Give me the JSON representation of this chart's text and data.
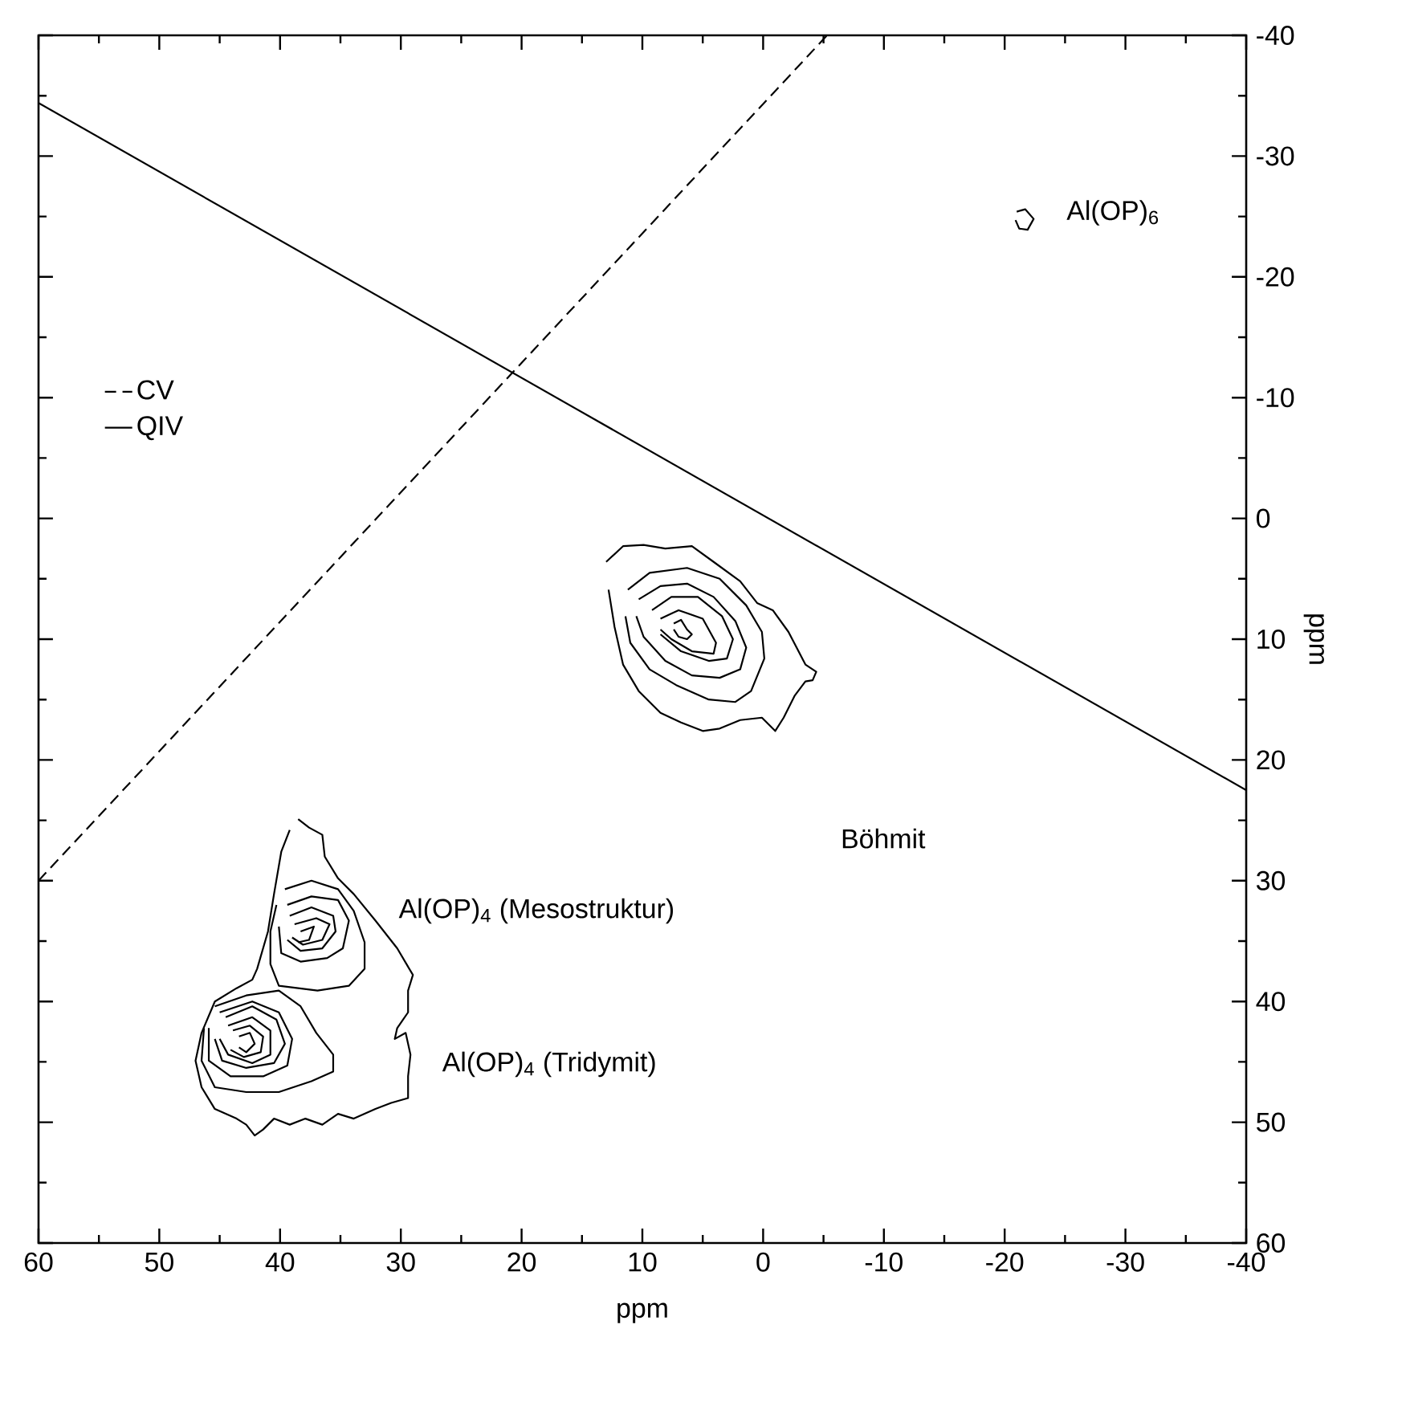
{
  "chart_data": {
    "type": "line",
    "xlabel": "ppm",
    "ylabel": "ppm",
    "xlim": [
      60,
      -40
    ],
    "ylim": [
      60,
      -40
    ],
    "xticks": [
      60,
      50,
      40,
      30,
      20,
      10,
      0,
      -10,
      -20,
      -30,
      -40
    ],
    "yticks": [
      -40,
      -30,
      -20,
      -10,
      0,
      10,
      20,
      30,
      40,
      50,
      60
    ],
    "legend": "left",
    "series": [
      {
        "name": "CV",
        "color": "#000000",
        "line_style": "dashed",
        "x": [
          60,
          -5.3
        ],
        "values": [
          30,
          -40
        ]
      },
      {
        "name": "QIV",
        "color": "#000000",
        "line_style": "solid",
        "x": [
          60,
          -40
        ],
        "values": [
          -34.4,
          22.5
        ]
      },
      {
        "color": "#000000",
        "x": [
          13.0,
          11.6,
          9.9,
          8.1,
          5.9,
          4.1,
          1.9,
          0.5,
          -0.8,
          -2.1,
          -3.5,
          -4.4,
          -4.1,
          -3.5,
          -2.6,
          -1.7,
          -1.0,
          0.1,
          1.9,
          3.6,
          5.0,
          6.8,
          8.5,
          10.3,
          11.6,
          12.3,
          12.8
        ],
        "values": [
          3.6,
          2.3,
          2.2,
          2.5,
          2.3,
          3.6,
          5.2,
          7.0,
          7.6,
          9.4,
          12.1,
          12.7,
          13.4,
          13.5,
          14.7,
          16.5,
          17.6,
          16.5,
          16.7,
          17.4,
          17.6,
          16.9,
          16.1,
          14.3,
          12.1,
          9.0,
          5.9
        ]
      },
      {
        "color": "#000000",
        "x": [
          11.2,
          9.4,
          6.3,
          3.6,
          1.4,
          0.1,
          -0.1,
          1.0,
          2.3,
          4.5,
          7.2,
          9.4,
          11.0,
          11.4
        ],
        "values": [
          5.9,
          4.5,
          4.1,
          5.0,
          7.2,
          9.4,
          11.6,
          14.3,
          15.2,
          15.0,
          13.8,
          12.5,
          10.3,
          8.1
        ]
      },
      {
        "color": "#000000",
        "x": [
          10.3,
          8.5,
          6.3,
          4.1,
          2.3,
          1.4,
          1.9,
          3.6,
          5.9,
          8.1,
          9.9,
          10.5
        ],
        "values": [
          6.7,
          5.6,
          5.4,
          6.5,
          8.5,
          10.7,
          12.5,
          13.2,
          13.0,
          11.8,
          9.8,
          8.1
        ]
      },
      {
        "color": "#000000",
        "x": [
          9.2,
          7.6,
          5.4,
          3.4,
          2.5,
          3.0,
          4.5,
          6.8,
          8.5
        ],
        "values": [
          7.6,
          6.5,
          6.5,
          8.1,
          10.0,
          11.6,
          11.8,
          11.0,
          9.6
        ]
      },
      {
        "color": "#000000",
        "x": [
          8.5,
          7.0,
          5.0,
          3.9,
          4.1,
          5.9,
          7.6,
          8.5
        ],
        "values": [
          8.3,
          7.6,
          8.3,
          10.3,
          11.2,
          11.0,
          10.0,
          9.2
        ]
      },
      {
        "color": "#000000",
        "x": [
          7.4,
          6.8,
          6.3,
          5.9,
          6.3,
          7.0,
          7.4
        ],
        "values": [
          8.7,
          8.4,
          9.2,
          9.6,
          10.0,
          9.8,
          9.2
        ]
      },
      {
        "color": "#000000",
        "x": [
          38.5,
          37.6,
          36.5,
          36.3,
          35.2,
          33.9,
          32.1,
          30.3,
          29.0,
          29.4,
          29.4,
          30.3,
          30.5,
          29.6,
          29.2,
          29.4,
          29.4,
          30.8,
          32.1,
          33.9,
          35.2,
          36.5,
          37.9,
          39.2,
          40.5,
          41.4,
          42.1,
          42.8,
          43.6,
          45.4,
          46.5,
          47.0,
          46.5,
          45.4,
          43.6,
          42.3,
          41.9,
          41.0,
          40.5,
          39.9,
          39.2
        ],
        "values": [
          24.9,
          25.6,
          26.2,
          28.0,
          29.8,
          31.1,
          33.3,
          35.6,
          37.8,
          39.1,
          40.9,
          42.2,
          43.1,
          42.6,
          44.4,
          46.2,
          48.0,
          48.4,
          48.9,
          49.7,
          49.3,
          50.2,
          49.7,
          50.2,
          49.7,
          50.6,
          51.1,
          50.2,
          49.7,
          48.9,
          47.1,
          44.9,
          42.6,
          40.0,
          38.9,
          38.2,
          37.3,
          34.2,
          31.1,
          27.6,
          25.8
        ]
      },
      {
        "color": "#000000",
        "x": [
          39.6,
          37.4,
          35.2,
          33.9,
          33.0,
          33.0,
          34.3,
          36.9,
          40.1,
          40.8,
          40.8,
          40.3
        ],
        "values": [
          30.7,
          30.0,
          30.7,
          32.5,
          35.1,
          37.3,
          38.7,
          39.1,
          38.7,
          36.9,
          34.2,
          32.0
        ]
      },
      {
        "color": "#000000",
        "x": [
          39.4,
          37.4,
          35.2,
          34.3,
          34.8,
          36.1,
          38.3,
          39.9,
          40.1
        ],
        "values": [
          32.0,
          31.3,
          31.6,
          33.3,
          35.6,
          36.4,
          36.7,
          36.0,
          33.8
        ]
      },
      {
        "color": "#000000",
        "x": [
          39.2,
          37.4,
          35.6,
          35.4,
          36.5,
          38.3,
          39.4
        ],
        "values": [
          32.9,
          32.2,
          32.9,
          34.2,
          35.6,
          35.8,
          34.9
        ]
      },
      {
        "color": "#000000",
        "x": [
          38.8,
          37.0,
          35.9,
          36.5,
          38.1,
          39.0
        ],
        "values": [
          33.6,
          33.1,
          33.6,
          34.9,
          35.3,
          34.7
        ]
      },
      {
        "color": "#000000",
        "x": [
          38.3,
          37.2,
          37.6,
          38.5
        ],
        "values": [
          34.2,
          33.8,
          34.9,
          35.1
        ]
      },
      {
        "color": "#000000",
        "x": [
          45.4,
          42.8,
          40.1,
          38.3,
          37.0,
          35.6,
          35.6,
          37.4,
          40.1,
          42.8,
          45.4,
          46.5,
          46.3
        ],
        "values": [
          40.4,
          39.5,
          39.1,
          40.4,
          42.6,
          44.4,
          45.8,
          46.6,
          47.5,
          47.5,
          47.1,
          44.9,
          42.2
        ]
      },
      {
        "color": "#000000",
        "x": [
          45.0,
          42.3,
          40.1,
          39.0,
          39.4,
          41.4,
          44.1,
          45.9,
          45.9
        ],
        "values": [
          40.9,
          40.0,
          40.9,
          43.1,
          45.3,
          46.2,
          46.2,
          44.9,
          42.2
        ]
      },
      {
        "color": "#000000",
        "x": [
          44.5,
          42.3,
          40.3,
          39.6,
          40.5,
          42.8,
          44.8,
          45.4
        ],
        "values": [
          41.3,
          40.4,
          41.5,
          43.5,
          45.1,
          45.5,
          44.9,
          43.1
        ]
      },
      {
        "color": "#000000",
        "x": [
          44.3,
          42.3,
          40.8,
          40.8,
          42.3,
          44.3,
          45.0
        ],
        "values": [
          42.0,
          41.3,
          42.4,
          44.4,
          45.1,
          44.4,
          43.1
        ]
      },
      {
        "color": "#000000",
        "x": [
          43.9,
          42.5,
          41.4,
          41.6,
          43.0,
          44.1
        ],
        "values": [
          42.4,
          42.0,
          42.9,
          44.2,
          44.6,
          44.0
        ]
      },
      {
        "color": "#000000",
        "x": [
          43.4,
          42.5,
          42.1,
          42.8,
          43.4
        ],
        "values": [
          42.9,
          42.6,
          43.5,
          44.2,
          43.8
        ]
      },
      {
        "color": "#000000",
        "x": [
          -21.0,
          -21.7,
          -22.4,
          -21.9,
          -21.2,
          -20.9
        ],
        "values": [
          -25.4,
          -25.6,
          -24.8,
          -23.9,
          -24.0,
          -24.7
        ]
      }
    ],
    "annotations": [
      "Böhmit",
      "Al(OP)$_{6}$",
      "Al(OP)$_{4}$ (Mesostruktur)",
      "Al(OP)$_{4}$ (Tridymit)"
    ]
  }
}
